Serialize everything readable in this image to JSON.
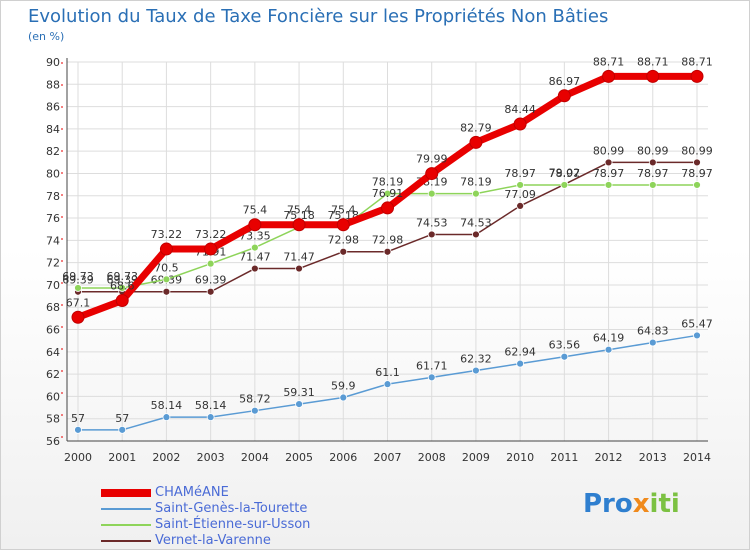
{
  "chart_data": {
    "type": "line",
    "title": "Evolution du Taux de Taxe Foncière sur les Propriétés Non Bâties",
    "ylabel": "(en %)",
    "xlabel": "",
    "x": [
      "2000",
      "2001",
      "2002",
      "2003",
      "2004",
      "2005",
      "2006",
      "2007",
      "2008",
      "2009",
      "2010",
      "2011",
      "2012",
      "2013",
      "2014"
    ],
    "ylim": [
      56,
      90
    ],
    "yticks": [
      56,
      58,
      60,
      62,
      64,
      66,
      68,
      70,
      72,
      74,
      76,
      78,
      80,
      82,
      84,
      86,
      88,
      90
    ],
    "grid": true,
    "legend_position": "bottom-left",
    "series": [
      {
        "name": "CHAMéANE",
        "color": "#e80000",
        "values": [
          67.1,
          68.6,
          73.22,
          73.22,
          75.4,
          75.4,
          75.4,
          76.91,
          79.99,
          82.79,
          84.44,
          86.97,
          88.71,
          88.71,
          88.71
        ],
        "labels": [
          "67.1",
          "68.6",
          "73.22",
          "73.22",
          "75.4",
          "75.4",
          "75.4",
          "76.91",
          "79.99",
          "82.79",
          "84.44",
          "86.97",
          "88.71",
          "88.71",
          "88.71"
        ]
      },
      {
        "name": "Saint-Genès-la-Tourette",
        "color": "#5a9bd4",
        "values": [
          57,
          57,
          58.14,
          58.14,
          58.72,
          59.31,
          59.9,
          61.1,
          61.71,
          62.32,
          62.94,
          63.56,
          64.19,
          64.83,
          65.47
        ],
        "labels": [
          "57",
          "57",
          "58.14",
          "58.14",
          "58.72",
          "59.31",
          "59.9",
          "61.1",
          "61.71",
          "62.32",
          "62.94",
          "63.56",
          "64.19",
          "64.83",
          "65.47"
        ]
      },
      {
        "name": "Saint-Étienne-sur-Usson",
        "color": "#8ed45a",
        "values": [
          69.73,
          69.73,
          70.5,
          71.91,
          73.35,
          75.18,
          75.18,
          78.19,
          78.19,
          78.19,
          78.97,
          78.97,
          78.97,
          78.97,
          78.97
        ],
        "labels": [
          "69.73",
          "69.73",
          "70.5",
          "71.91",
          "73.35",
          "75.18",
          "75.18",
          "78.19",
          "78.19",
          "78.19",
          "78.97",
          "78.97",
          "78.97",
          "78.97",
          "78.97"
        ]
      },
      {
        "name": "Vernet-la-Varenne",
        "color": "#6b2a2a",
        "values": [
          69.39,
          69.39,
          69.39,
          69.39,
          71.47,
          71.47,
          72.98,
          72.98,
          74.53,
          74.53,
          77.09,
          79.02,
          80.99,
          80.99,
          80.99
        ],
        "labels": [
          "69.39",
          "69.39",
          "69.39",
          "69.39",
          "71.47",
          "71.47",
          "72.98",
          "72.98",
          "74.53",
          "74.53",
          "77.09",
          "79.02",
          "80.99",
          "80.99",
          "80.99"
        ]
      }
    ]
  },
  "logo": {
    "part1": "Pro",
    "part2": "x",
    "part3": "iti"
  }
}
